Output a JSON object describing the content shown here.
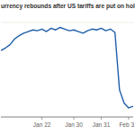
{
  "chart_data": {
    "type": "line",
    "title": "urrency rebounds after US tariffs are put on hold",
    "categories": [
      null,
      null,
      null,
      null,
      null,
      null,
      null,
      null,
      null,
      "Jan 22",
      null,
      null,
      null,
      null,
      null,
      null,
      "Jan 30",
      null,
      null,
      null,
      null,
      null,
      "Jan 31",
      null,
      null,
      null,
      null,
      null,
      "Feb 3",
      null
    ],
    "values": [
      81,
      84,
      88,
      95,
      99,
      102,
      104,
      106,
      105,
      107,
      104,
      108,
      106,
      109,
      107,
      105,
      106,
      104,
      102,
      105,
      107,
      106,
      108,
      105,
      107,
      103,
      33,
      17,
      11,
      13
    ],
    "color": "#1f5fa8",
    "ylim": [
      0,
      115
    ],
    "tick_labels": "x"
  }
}
